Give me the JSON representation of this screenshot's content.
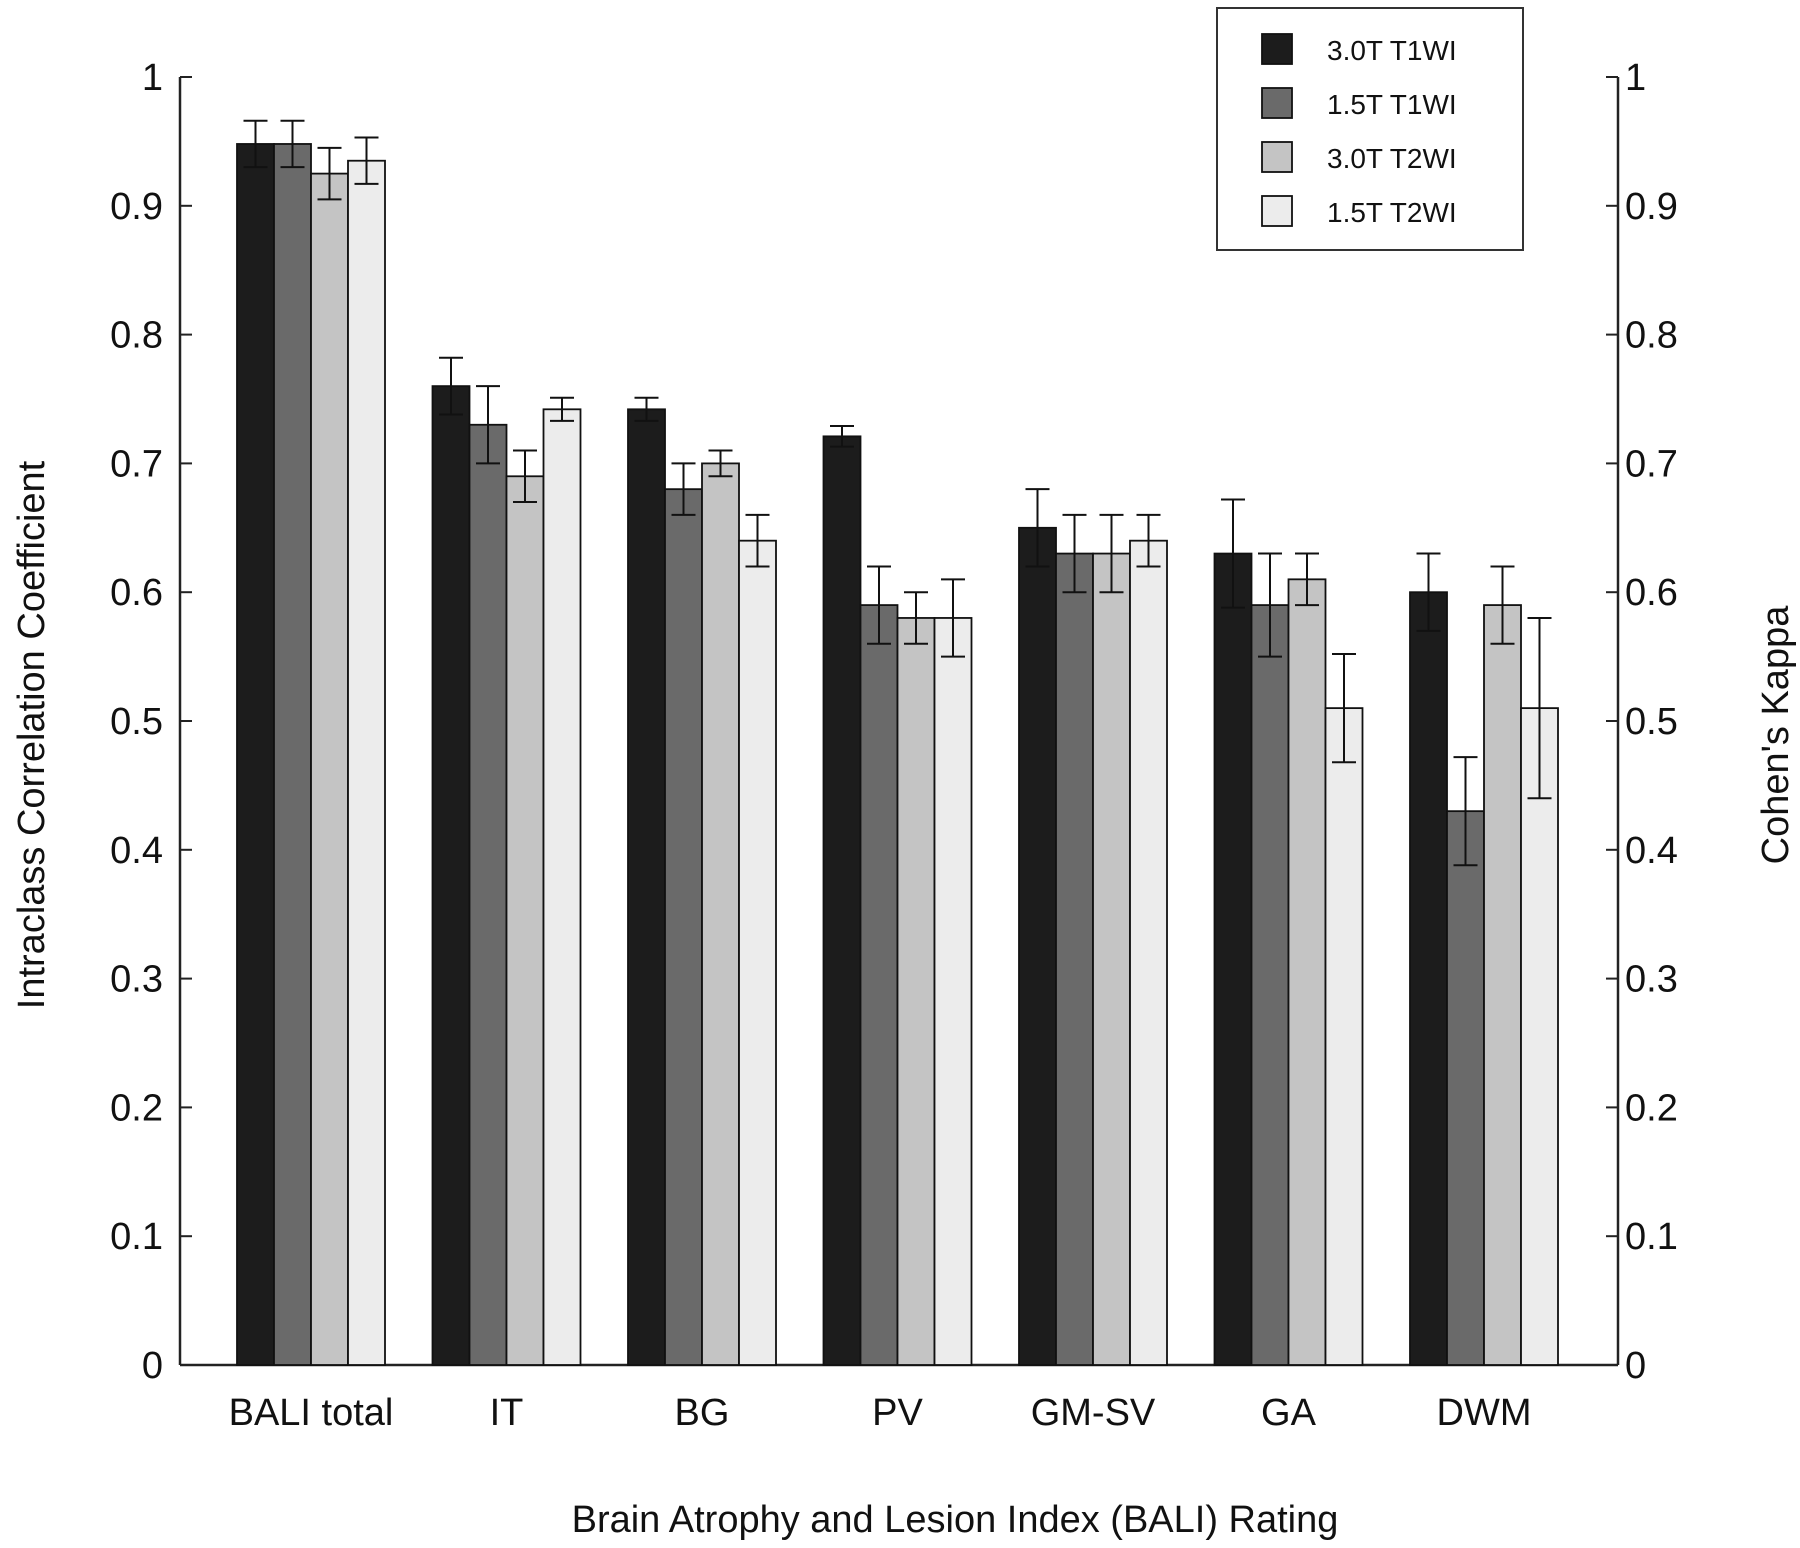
{
  "chart_data": {
    "type": "bar",
    "title": "",
    "xlabel": "Brain Atrophy and Lesion Index (BALI) Rating",
    "ylabel": "Intraclass Correlation Coefficient",
    "ylabel_right": "Cohen's Kappa",
    "ylim": [
      0,
      1
    ],
    "yticks": [
      "0",
      "0.1",
      "0.2",
      "0.3",
      "0.4",
      "0.5",
      "0.6",
      "0.7",
      "0.8",
      "0.9",
      "1"
    ],
    "categories": [
      "BALI total",
      "IT",
      "BG",
      "PV",
      "GM-SV",
      "GA",
      "DWM"
    ],
    "grid": false,
    "legend_position": "top-right",
    "series": [
      {
        "name": "3.0T T1WI",
        "color": "#1c1c1c",
        "values": [
          0.948,
          0.76,
          0.742,
          0.721,
          0.65,
          0.63,
          0.6
        ],
        "error": [
          0.018,
          0.022,
          0.009,
          0.008,
          0.03,
          0.042,
          0.03
        ]
      },
      {
        "name": "1.5T T1WI",
        "color": "#6a6a6a",
        "values": [
          0.948,
          0.73,
          0.68,
          0.59,
          0.63,
          0.59,
          0.43
        ],
        "error": [
          0.018,
          0.03,
          0.02,
          0.03,
          0.03,
          0.04,
          0.042
        ]
      },
      {
        "name": "3.0T T2WI",
        "color": "#c4c4c4",
        "values": [
          0.925,
          0.69,
          0.7,
          0.58,
          0.63,
          0.61,
          0.59
        ],
        "error": [
          0.02,
          0.02,
          0.01,
          0.02,
          0.03,
          0.02,
          0.03
        ]
      },
      {
        "name": "1.5T T2WI",
        "color": "#ececec",
        "values": [
          0.935,
          0.742,
          0.64,
          0.58,
          0.64,
          0.51,
          0.51
        ],
        "error": [
          0.018,
          0.009,
          0.02,
          0.03,
          0.02,
          0.042,
          0.07
        ]
      }
    ]
  }
}
